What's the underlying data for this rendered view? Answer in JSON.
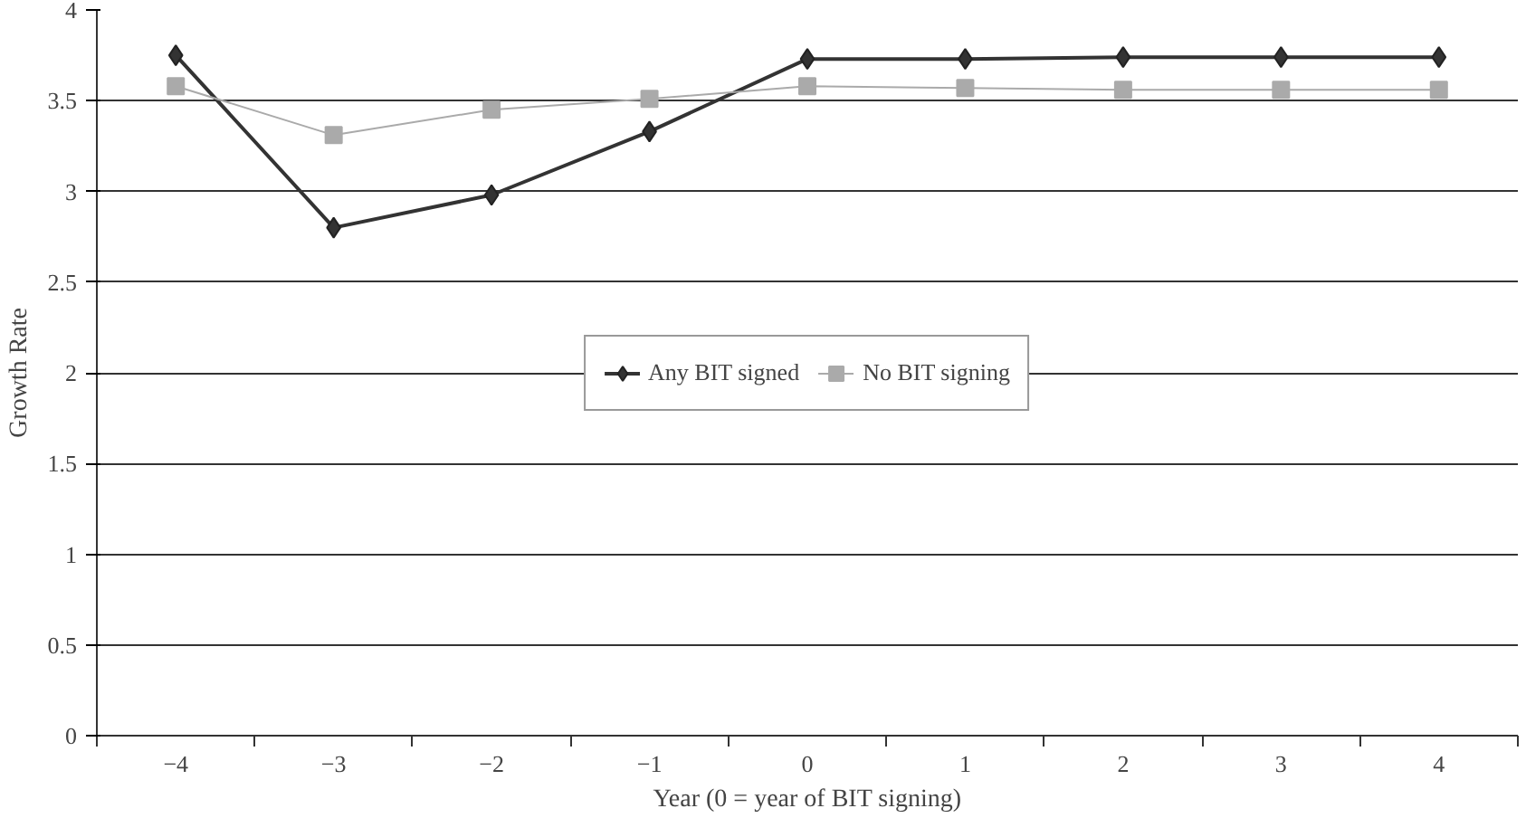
{
  "chart_data": {
    "type": "line",
    "xlabel": "Year (0 = year of BIT signing)",
    "ylabel": "Growth Rate",
    "categories": [
      "−4",
      "−3",
      "−2",
      "−1",
      "0",
      "1",
      "2",
      "3",
      "4"
    ],
    "series": [
      {
        "name": "Any BIT signed",
        "color": "#333333",
        "marker": "diamond",
        "values": [
          3.75,
          2.8,
          2.98,
          3.33,
          3.73,
          3.73,
          3.74,
          3.74,
          3.74
        ]
      },
      {
        "name": "No BIT signing",
        "color": "#aaaaaa",
        "marker": "square",
        "values": [
          3.58,
          3.31,
          3.45,
          3.51,
          3.58,
          3.57,
          3.56,
          3.56,
          3.56
        ]
      }
    ],
    "ylim": [
      0,
      4
    ],
    "yticks": [
      0,
      0.5,
      1,
      1.5,
      2,
      2.5,
      3,
      3.5,
      4
    ],
    "grid": "y",
    "legend": "center",
    "line_style": "solid"
  }
}
